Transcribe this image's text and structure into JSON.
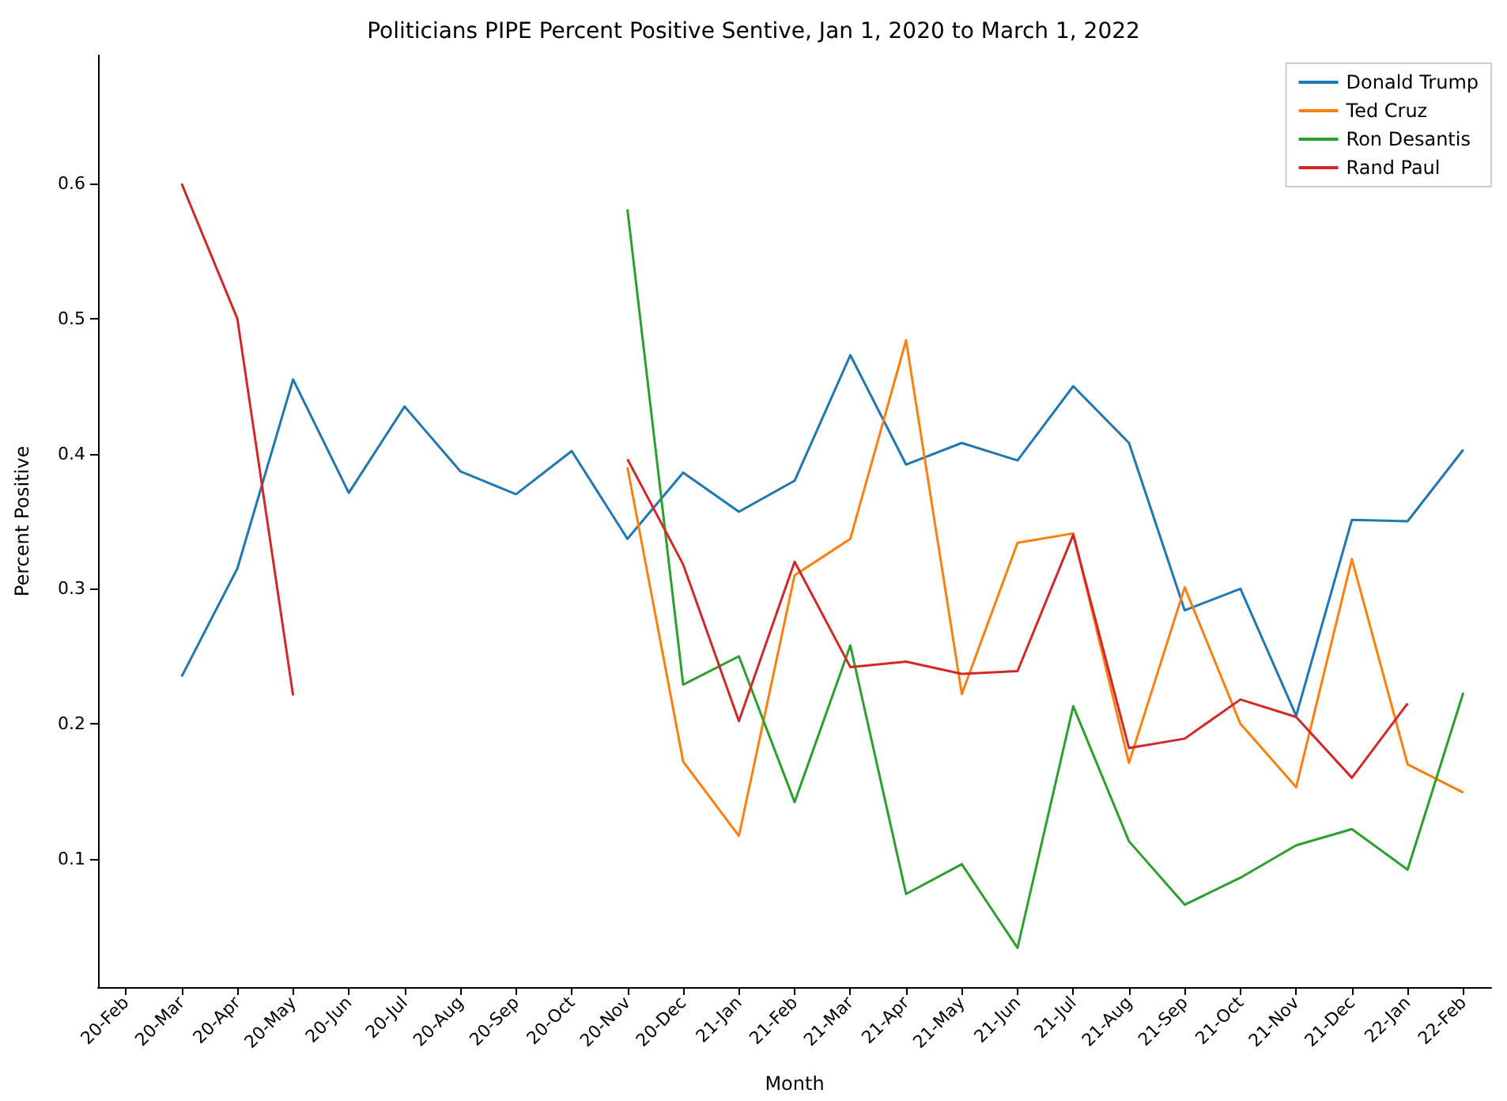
{
  "chart_data": {
    "type": "line",
    "title": "Politicians PIPE Percent Positive Sentive, Jan 1, 2020 to March 1, 2022",
    "xlabel": "Month",
    "ylabel": "Percent Positive",
    "categories": [
      "20-Feb",
      "20-Mar",
      "20-Apr",
      "20-May",
      "20-Jun",
      "20-Jul",
      "20-Aug",
      "20-Sep",
      "20-Oct",
      "20-Nov",
      "20-Dec",
      "21-Jan",
      "21-Feb",
      "21-Mar",
      "21-Apr",
      "21-May",
      "21-Jun",
      "21-Jul",
      "21-Aug",
      "21-Sep",
      "21-Oct",
      "21-Nov",
      "21-Dec",
      "22-Jan",
      "22-Feb"
    ],
    "series": [
      {
        "name": "Donald Trump",
        "color": "#1f77b4",
        "values": [
          null,
          0.235,
          0.315,
          0.455,
          0.371,
          0.435,
          0.387,
          0.37,
          0.402,
          0.337,
          0.386,
          0.357,
          0.38,
          0.473,
          0.392,
          0.408,
          0.395,
          0.45,
          0.408,
          0.284,
          0.3,
          0.206,
          0.351,
          0.35,
          0.403
        ]
      },
      {
        "name": "Ted Cruz",
        "color": "#ff7f0e",
        "values": [
          null,
          null,
          null,
          null,
          null,
          null,
          null,
          null,
          null,
          0.39,
          0.172,
          0.117,
          0.31,
          0.337,
          0.484,
          0.222,
          0.334,
          0.341,
          0.171,
          0.301,
          0.2,
          0.153,
          0.322,
          0.17,
          0.149
        ]
      },
      {
        "name": "Ron Desantis",
        "color": "#2ca02c",
        "values": [
          null,
          null,
          null,
          null,
          null,
          null,
          null,
          null,
          null,
          0.581,
          0.229,
          0.25,
          0.142,
          0.258,
          0.074,
          0.096,
          0.034,
          0.213,
          0.113,
          0.066,
          0.086,
          0.11,
          0.122,
          0.092,
          0.223
        ]
      },
      {
        "name": "Rand Paul",
        "color": "#d62728",
        "values": [
          null,
          0.6,
          0.5,
          0.221,
          null,
          null,
          null,
          null,
          null,
          0.396,
          0.318,
          0.202,
          0.32,
          0.242,
          0.246,
          0.237,
          0.239,
          0.34,
          0.182,
          0.189,
          0.218,
          0.205,
          0.16,
          0.215,
          null
        ]
      }
    ],
    "ylim": [
      0.005,
      0.695
    ],
    "yticks": [
      0.1,
      0.2,
      0.3,
      0.4,
      0.5,
      0.6
    ],
    "grid": false,
    "legend": "top right",
    "marker": "none",
    "line_style": "solid"
  }
}
